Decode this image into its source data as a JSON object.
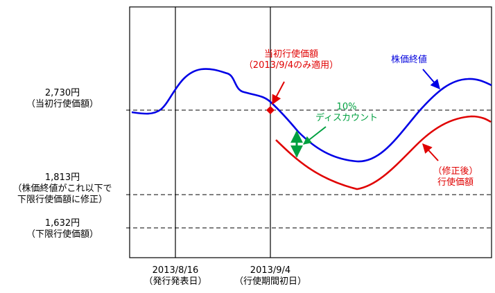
{
  "chart_data": {
    "type": "line",
    "colors": {
      "stock": "#0000e6",
      "strike": "#e00000",
      "discount": "#00a040",
      "frame": "#000000"
    },
    "y_levels": [
      {
        "price_line1": "2,730円",
        "price_line2": "（当初行使価額）",
        "value": 2730
      },
      {
        "price_line1": "1,813円",
        "price_line2": "（株価終値がこれ以下で",
        "price_line3": "下限行使価額に修正）",
        "value": 1813
      },
      {
        "price_line1": "1,632円",
        "price_line2": "（下限行使価額）",
        "value": 1632
      }
    ],
    "x_dates": [
      {
        "line1": "2013/8/16",
        "line2": "（発行発表日）"
      },
      {
        "line1": "2013/9/4",
        "line2": "（行使期間初日）"
      }
    ],
    "series": [
      {
        "name": "株価終値"
      },
      {
        "name_line1": "（修正後）",
        "name_line2": "行使価額"
      }
    ],
    "annotations": {
      "initial_line1": "当初行使価額",
      "initial_line2": "（2013/9/4のみ適用）",
      "discount_line1": "10%",
      "discount_line2": "ディスカウント"
    }
  }
}
